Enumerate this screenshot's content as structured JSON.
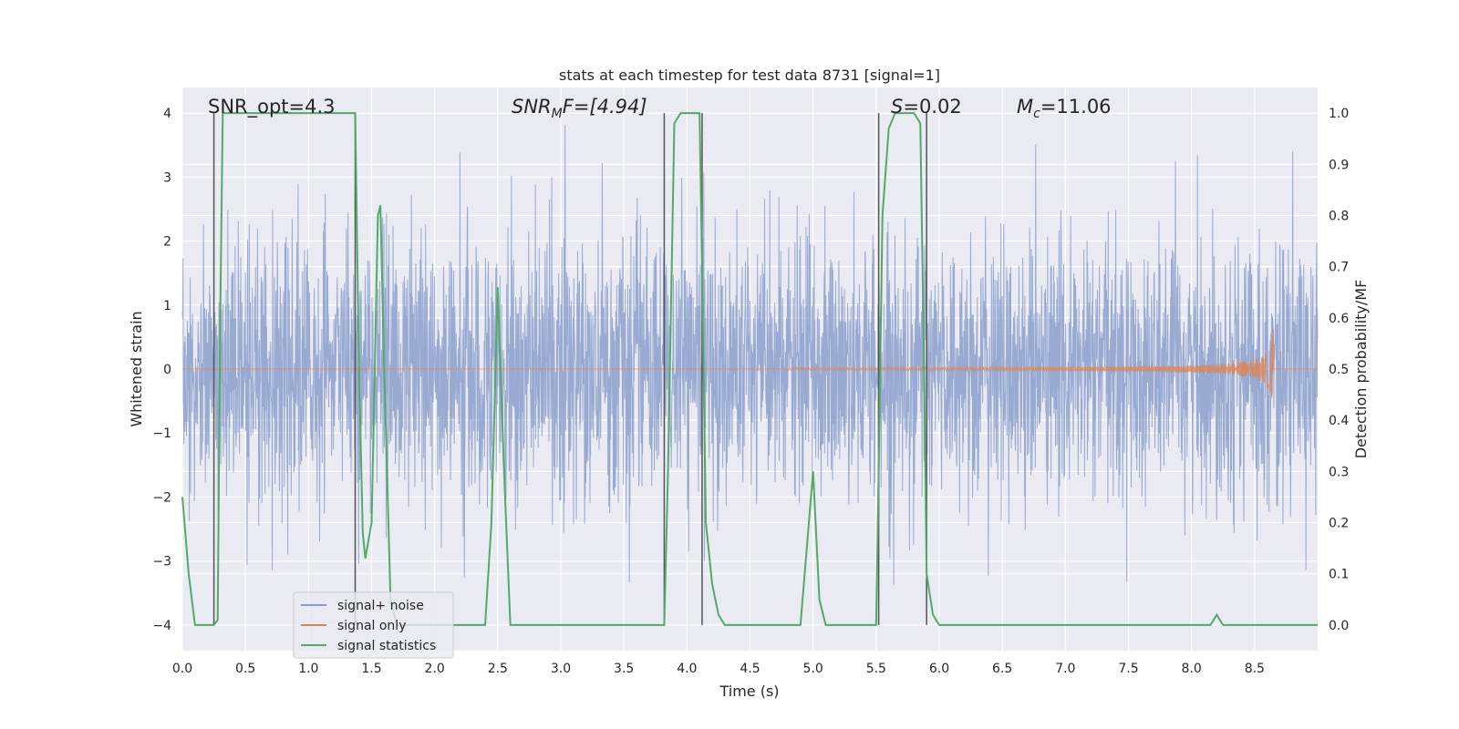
{
  "chart_data": {
    "type": "line",
    "title": "stats at each timestep for test data 8731 [signal=1]",
    "xlabel": "Time (s)",
    "ylabel": "Whitened strain",
    "y2label": "Detection probability/MF",
    "xlim": [
      0.0,
      9.0
    ],
    "ylim": [
      -4.4,
      4.4
    ],
    "y2lim": [
      -0.05,
      1.05
    ],
    "xticks": [
      "0.0",
      "0.5",
      "1.0",
      "1.5",
      "2.0",
      "2.5",
      "3.0",
      "3.5",
      "4.0",
      "4.5",
      "5.0",
      "5.5",
      "6.0",
      "6.5",
      "7.0",
      "7.5",
      "8.0",
      "8.5"
    ],
    "xtick_values": [
      0.0,
      0.5,
      1.0,
      1.5,
      2.0,
      2.5,
      3.0,
      3.5,
      4.0,
      4.5,
      5.0,
      5.5,
      6.0,
      6.5,
      7.0,
      7.5,
      8.0,
      8.5
    ],
    "yticks": [
      "−4",
      "−3",
      "−2",
      "−1",
      "0",
      "1",
      "2",
      "3",
      "4"
    ],
    "ytick_values": [
      -4,
      -3,
      -2,
      -1,
      0,
      1,
      2,
      3,
      4
    ],
    "y2ticks": [
      "0.0",
      "0.1",
      "0.2",
      "0.3",
      "0.4",
      "0.5",
      "0.6",
      "0.7",
      "0.8",
      "0.9",
      "1.0"
    ],
    "y2tick_values": [
      0.0,
      0.1,
      0.2,
      0.3,
      0.4,
      0.5,
      0.6,
      0.7,
      0.8,
      0.9,
      1.0
    ],
    "annotations": {
      "snr_opt": "SNR_opt=4.3",
      "snr_mf_prefix": "SNR",
      "snr_mf_sub": "M",
      "snr_mf_suffix": "F=[4.94]",
      "s_prefix": "S",
      "s_suffix": "=0.02",
      "mc_prefix": "M",
      "mc_sub": "c",
      "mc_suffix": "=11.06"
    },
    "legend": {
      "position": "lower-left",
      "entries": [
        "signal+ noise",
        "signal only",
        "signal statistics"
      ]
    },
    "series": [
      {
        "name": "signal+ noise",
        "color": "#8a9fcc",
        "description": "noisy whitened strain, roughly within ±4",
        "noise_sigma": 1.0,
        "peak_envelope": 4.0
      },
      {
        "name": "signal only",
        "color": "#dd8452",
        "description": "chirp signal growing toward merger",
        "t_start": 4.8,
        "t_merger": 8.65,
        "peak_amplitude": 0.7
      },
      {
        "name": "signal statistics",
        "color": "#55a868",
        "x": [
          0.0,
          0.05,
          0.1,
          0.15,
          0.2,
          0.25,
          0.28,
          0.3,
          0.32,
          0.4,
          1.0,
          1.3,
          1.37,
          1.4,
          1.43,
          1.45,
          1.5,
          1.55,
          1.57,
          1.6,
          1.65,
          1.7,
          1.8,
          2.0,
          2.2,
          2.4,
          2.45,
          2.5,
          2.55,
          2.6,
          2.7,
          3.0,
          3.5,
          3.8,
          3.82,
          3.85,
          3.9,
          3.95,
          4.0,
          4.05,
          4.1,
          4.12,
          4.15,
          4.2,
          4.25,
          4.3,
          4.5,
          4.9,
          4.95,
          5.0,
          5.05,
          5.1,
          5.2,
          5.5,
          5.52,
          5.55,
          5.6,
          5.65,
          5.7,
          5.75,
          5.8,
          5.85,
          5.88,
          5.9,
          5.95,
          6.0,
          6.5,
          7.0,
          7.5,
          8.0,
          8.15,
          8.2,
          8.25,
          8.3,
          8.5,
          8.75,
          9.0
        ],
        "values": [
          0.25,
          0.1,
          0.0,
          0.0,
          0.0,
          0.0,
          0.01,
          0.6,
          1.0,
          1.0,
          1.0,
          1.0,
          1.0,
          0.5,
          0.18,
          0.13,
          0.2,
          0.8,
          0.82,
          0.5,
          0.05,
          0.0,
          0.0,
          0.0,
          0.0,
          0.0,
          0.2,
          0.66,
          0.3,
          0.0,
          0.0,
          0.0,
          0.0,
          0.0,
          0.0,
          0.3,
          0.98,
          1.0,
          1.0,
          1.0,
          1.0,
          0.7,
          0.2,
          0.08,
          0.02,
          0.0,
          0.0,
          0.0,
          0.15,
          0.3,
          0.05,
          0.0,
          0.0,
          0.0,
          0.3,
          0.8,
          0.97,
          1.0,
          1.0,
          1.0,
          1.0,
          0.98,
          0.5,
          0.1,
          0.02,
          0.0,
          0.0,
          0.0,
          0.0,
          0.0,
          0.0,
          0.02,
          0.0,
          0.0,
          0.0,
          0.0,
          0.0
        ]
      }
    ],
    "vertical_lines": [
      0.25,
      1.37,
      3.82,
      4.12,
      5.52,
      5.9
    ],
    "vline_color": "#555555"
  }
}
